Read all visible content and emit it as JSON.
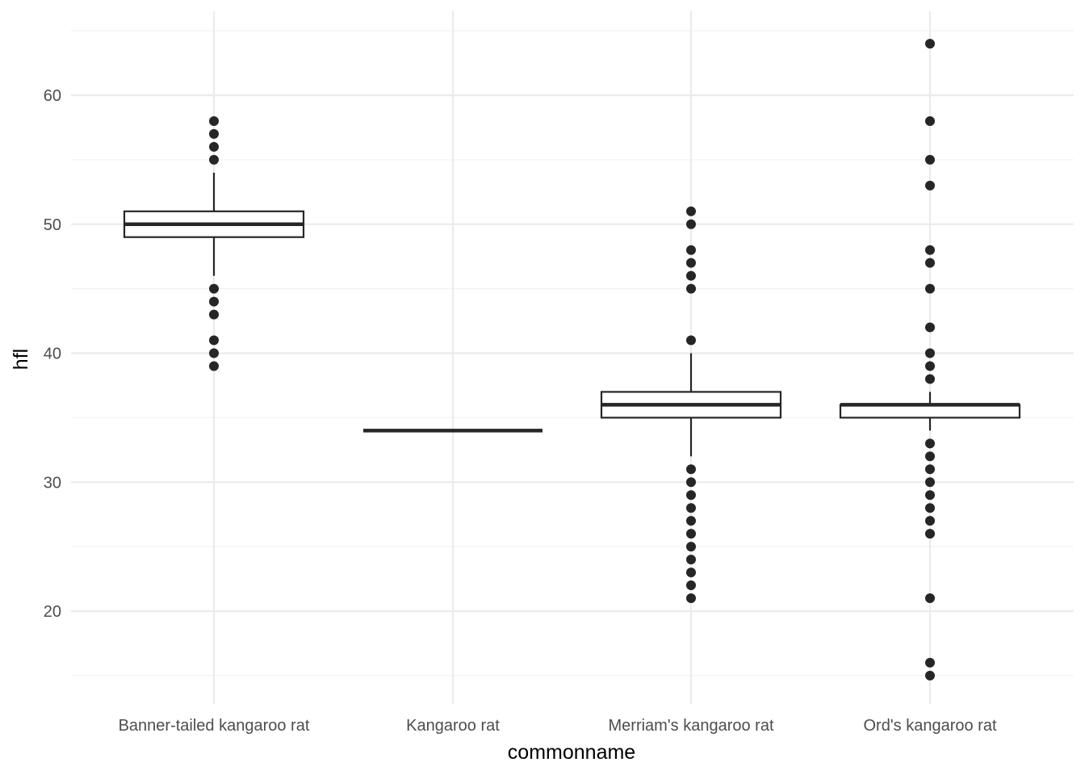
{
  "chart_data": {
    "type": "boxplot",
    "title": "",
    "xlabel": "commonname",
    "ylabel": "hfl",
    "categories": [
      "Banner-tailed kangaroo rat",
      "Kangaroo rat",
      "Merriam's kangaroo rat",
      "Ord's kangaroo rat"
    ],
    "ylim": [
      13.5,
      66
    ],
    "y_ticks": [
      20,
      30,
      40,
      50,
      60
    ],
    "y_tick_labels": [
      "20",
      "30",
      "40",
      "50",
      "60"
    ],
    "grid": true,
    "boxes": [
      {
        "category": "Banner-tailed kangaroo rat",
        "lower_whisker": 46,
        "q1": 49,
        "median": 50,
        "q3": 51,
        "upper_whisker": 54,
        "outliers": [
          39,
          40,
          41,
          43,
          44,
          45,
          55,
          56,
          57,
          58
        ]
      },
      {
        "category": "Kangaroo rat",
        "lower_whisker": 34,
        "q1": 34,
        "median": 34,
        "q3": 34,
        "upper_whisker": 34,
        "outliers": []
      },
      {
        "category": "Merriam's kangaroo rat",
        "lower_whisker": 32,
        "q1": 35,
        "median": 36,
        "q3": 37,
        "upper_whisker": 40,
        "outliers": [
          21,
          22,
          23,
          24,
          25,
          26,
          27,
          28,
          29,
          30,
          31,
          41,
          45,
          46,
          47,
          48,
          50,
          51
        ]
      },
      {
        "category": "Ord's kangaroo rat",
        "lower_whisker": 34,
        "q1": 35,
        "median": 36,
        "q3": 36,
        "upper_whisker": 37,
        "outliers": [
          15,
          16,
          21,
          26,
          27,
          28,
          29,
          30,
          31,
          32,
          33,
          38,
          39,
          40,
          42,
          45,
          47,
          48,
          53,
          55,
          58,
          64
        ]
      }
    ],
    "colors": {
      "box": "#262626",
      "outlier": "#262626",
      "grid_major": "#ebebeb",
      "grid_minor": "#f3f3f3"
    }
  }
}
